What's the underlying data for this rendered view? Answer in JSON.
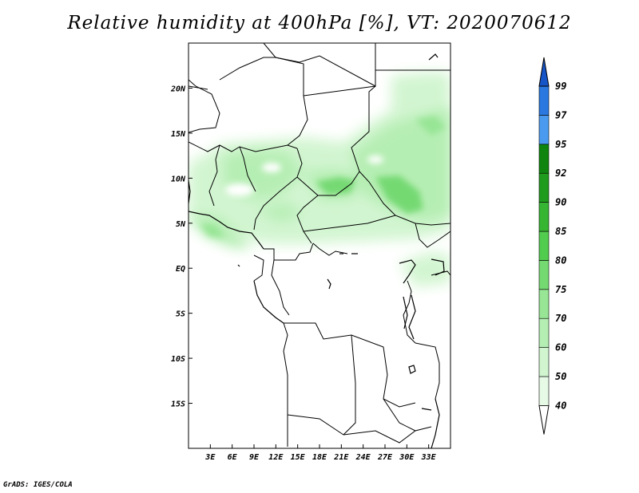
{
  "title": "Relative humidity at 400hPa [%], VT: 2020070612",
  "credit": "GrADS: IGES/COLA",
  "map": {
    "lon_range": [
      0,
      36
    ],
    "lat_range": [
      -20,
      25
    ],
    "lon_ticks": [
      {
        "value": 3,
        "label": "3E"
      },
      {
        "value": 6,
        "label": "6E"
      },
      {
        "value": 9,
        "label": "9E"
      },
      {
        "value": 12,
        "label": "12E"
      },
      {
        "value": 15,
        "label": "15E"
      },
      {
        "value": 18,
        "label": "18E"
      },
      {
        "value": 21,
        "label": "21E"
      },
      {
        "value": 24,
        "label": "24E"
      },
      {
        "value": 27,
        "label": "27E"
      },
      {
        "value": 30,
        "label": "30E"
      },
      {
        "value": 33,
        "label": "33E"
      }
    ],
    "lat_ticks": [
      {
        "value": 20,
        "label": "20N"
      },
      {
        "value": 15,
        "label": "15N"
      },
      {
        "value": 10,
        "label": "10N"
      },
      {
        "value": 5,
        "label": "5N"
      },
      {
        "value": 0,
        "label": "EQ"
      },
      {
        "value": -5,
        "label": "5S"
      },
      {
        "value": -10,
        "label": "10S"
      },
      {
        "value": -15,
        "label": "15S"
      }
    ]
  },
  "colorbar": {
    "levels": [
      "40",
      "50",
      "60",
      "70",
      "75",
      "80",
      "85",
      "90",
      "92",
      "95",
      "97",
      "99"
    ],
    "colors": [
      "#ffffff",
      "#e6fae6",
      "#d0f5cf",
      "#b5eeb3",
      "#97e595",
      "#75d972",
      "#52cc4f",
      "#36b533",
      "#1f9b1e",
      "#0f850f",
      "#4a9bf0",
      "#2a78e0",
      "#1655c8"
    ]
  }
}
